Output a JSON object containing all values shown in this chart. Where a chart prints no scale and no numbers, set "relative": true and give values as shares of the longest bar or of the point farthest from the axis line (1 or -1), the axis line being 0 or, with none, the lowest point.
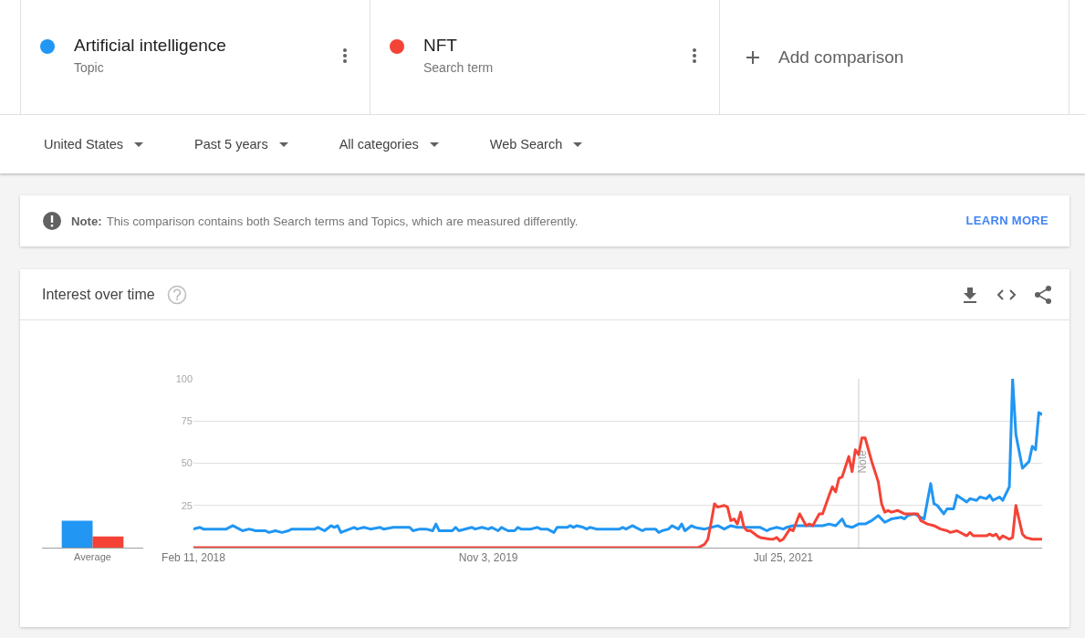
{
  "chart_data": [
    {
      "type": "bar",
      "categories": [
        "Average"
      ],
      "series": [
        {
          "color": "#2196f3",
          "values": [
            1
          ]
        },
        {
          "color": "#f44336",
          "values": [
            0.42
          ]
        }
      ],
      "relative": true
    },
    {
      "type": "line",
      "title": "Interest over time",
      "annotations": [
        "Topic",
        "Search term",
        "Add comparison",
        "United States",
        "Past 5 years",
        "All categories",
        "Web Search",
        "Note:",
        "This comparison contains both Search terms and Topics, which are measured differently.",
        "LEARN MORE"
      ],
      "series": [
        {
          "name": "Artificial intelligence",
          "color": "#2196f3",
          "x": [
            "2018-02-11",
            "2018-02-25",
            "2018-03-04",
            "2018-04-22",
            "2018-05-06",
            "2018-05-20",
            "2018-05-27",
            "2018-06-10",
            "2018-06-24",
            "2018-07-15",
            "2018-07-22",
            "2018-08-05",
            "2018-08-19",
            "2018-09-02",
            "2018-09-09",
            "2018-10-28",
            "2018-11-04",
            "2018-11-18",
            "2018-12-02",
            "2018-12-09",
            "2018-12-16",
            "2018-12-23",
            "2019-01-20",
            "2019-01-27",
            "2019-02-10",
            "2019-02-24",
            "2019-03-17",
            "2019-03-24",
            "2019-04-14",
            "2019-05-19",
            "2019-05-26",
            "2019-06-09",
            "2019-06-23",
            "2019-07-07",
            "2019-07-14",
            "2019-07-21",
            "2019-08-18",
            "2019-08-25",
            "2019-09-01",
            "2019-09-29",
            "2019-10-06",
            "2019-10-20",
            "2019-11-03",
            "2019-11-10",
            "2019-11-24",
            "2019-12-01",
            "2019-12-15",
            "2019-12-29",
            "2020-01-05",
            "2020-01-12",
            "2020-02-02",
            "2020-02-16",
            "2020-02-23",
            "2020-03-08",
            "2020-03-22",
            "2020-03-29",
            "2020-04-19",
            "2020-04-26",
            "2020-05-03",
            "2020-05-10",
            "2020-05-24",
            "2020-05-31",
            "2020-06-07",
            "2020-06-21",
            "2020-08-09",
            "2020-08-16",
            "2020-08-23",
            "2020-09-06",
            "2020-09-13",
            "2020-09-27",
            "2020-10-04",
            "2020-10-25",
            "2020-11-01",
            "2020-11-08",
            "2020-11-22",
            "2020-11-29",
            "2020-12-13",
            "2020-12-20",
            "2020-12-27",
            "2021-01-10",
            "2021-01-17",
            "2021-02-07",
            "2021-03-07",
            "2021-03-21",
            "2021-04-04",
            "2021-04-18",
            "2021-06-06",
            "2021-06-20",
            "2021-06-27",
            "2021-07-11",
            "2021-07-25",
            "2021-08-01",
            "2021-08-15",
            "2021-10-17",
            "2021-10-31",
            "2021-11-14",
            "2021-11-28",
            "2021-12-05",
            "2021-12-19",
            "2022-01-02",
            "2022-01-16",
            "2022-01-30",
            "2022-02-13",
            "2022-02-27",
            "2022-03-13",
            "2022-04-03",
            "2022-04-10",
            "2022-04-17",
            "2022-05-01",
            "2022-05-22",
            "2022-06-05",
            "2022-06-12",
            "2022-06-19",
            "2022-07-03",
            "2022-07-10",
            "2022-07-24",
            "2022-07-31",
            "2022-08-21",
            "2022-08-28",
            "2022-09-11",
            "2022-09-18",
            "2022-10-02",
            "2022-10-09",
            "2022-10-16",
            "2022-10-30",
            "2022-11-06",
            "2022-11-20",
            "2022-11-27",
            "2022-12-04",
            "2022-12-18",
            "2023-01-01",
            "2023-01-08",
            "2023-01-15",
            "2023-01-22",
            "2023-01-29"
          ],
          "values": [
            11,
            12,
            11,
            11,
            13,
            11,
            10,
            11,
            10,
            10,
            9,
            10,
            9,
            10,
            11,
            11,
            12,
            10,
            13,
            12,
            13,
            9,
            12,
            11,
            12,
            11,
            12,
            11,
            12,
            12,
            10,
            11,
            11,
            10,
            14,
            10,
            10,
            12,
            10,
            12,
            11,
            12,
            11,
            12,
            10,
            12,
            10,
            10,
            12,
            11,
            11,
            12,
            11,
            11,
            9,
            12,
            12,
            13,
            12,
            13,
            12,
            11,
            12,
            11,
            11,
            12,
            11,
            13,
            12,
            10,
            11,
            11,
            9,
            10,
            11,
            13,
            11,
            14,
            10,
            13,
            12,
            11,
            13,
            11,
            13,
            12,
            12,
            10,
            11,
            12,
            11,
            12,
            13,
            13,
            14,
            13,
            17,
            13,
            12,
            14,
            14,
            16,
            19,
            15,
            17,
            18,
            17,
            19,
            20,
            17,
            38,
            26,
            25,
            20,
            23,
            23,
            31,
            27,
            29,
            28,
            30,
            29,
            31,
            28,
            30,
            28,
            36,
            100,
            67,
            47,
            51,
            60,
            58,
            80,
            79
          ]
        },
        {
          "name": "NFT",
          "color": "#f44336",
          "x": [
            "2018-02-11",
            "2021-01-24",
            "2021-02-07",
            "2021-02-14",
            "2021-02-21",
            "2021-02-28",
            "2021-03-07",
            "2021-03-21",
            "2021-03-28",
            "2021-04-04",
            "2021-04-11",
            "2021-04-18",
            "2021-04-25",
            "2021-05-02",
            "2021-05-09",
            "2021-05-16",
            "2021-05-30",
            "2021-06-06",
            "2021-06-27",
            "2021-07-04",
            "2021-07-11",
            "2021-07-18",
            "2021-07-25",
            "2021-08-08",
            "2021-08-15",
            "2021-08-29",
            "2021-09-12",
            "2021-09-19",
            "2021-09-26",
            "2021-10-10",
            "2021-10-17",
            "2021-10-31",
            "2021-11-07",
            "2021-11-14",
            "2021-11-21",
            "2021-11-28",
            "2021-12-12",
            "2021-12-19",
            "2021-12-26",
            "2022-01-02",
            "2022-01-09",
            "2022-01-16",
            "2022-01-30",
            "2022-02-13",
            "2022-02-20",
            "2022-02-27",
            "2022-03-06",
            "2022-03-13",
            "2022-03-27",
            "2022-04-03",
            "2022-04-10",
            "2022-04-24",
            "2022-05-08",
            "2022-05-15",
            "2022-05-29",
            "2022-06-12",
            "2022-06-26",
            "2022-07-10",
            "2022-07-17",
            "2022-07-31",
            "2022-08-21",
            "2022-08-28",
            "2022-09-04",
            "2022-10-02",
            "2022-10-09",
            "2022-10-16",
            "2022-10-23",
            "2022-10-30",
            "2022-11-06",
            "2022-11-20",
            "2022-11-27",
            "2022-12-04",
            "2022-12-18",
            "2022-12-25",
            "2023-01-08",
            "2023-01-29"
          ],
          "values": [
            0,
            0,
            2,
            5,
            15,
            26,
            24,
            25,
            24,
            16,
            17,
            14,
            21,
            12,
            10,
            10,
            7,
            6,
            5,
            5,
            6,
            4,
            5,
            11,
            10,
            20,
            13,
            14,
            13,
            20,
            20,
            31,
            36,
            33,
            41,
            42,
            54,
            45,
            58,
            55,
            65,
            65,
            51,
            39,
            26,
            21,
            22,
            21,
            22,
            21,
            20,
            20,
            20,
            16,
            14,
            13,
            11,
            10,
            9,
            10,
            7,
            9,
            7,
            7,
            8,
            7,
            8,
            5,
            7,
            5,
            6,
            25,
            8,
            6,
            5,
            5
          ]
        }
      ],
      "xlim": [
        "2018-02-11",
        "2023-01-29"
      ],
      "xticks": [
        {
          "value": "2018-02-11",
          "label": "Feb 11, 2018"
        },
        {
          "value": "2019-11-03",
          "label": "Nov 3, 2019"
        },
        {
          "value": "2021-07-25",
          "label": "Jul 25, 2021"
        }
      ],
      "ylim": [
        0,
        100
      ],
      "yticks": [
        25,
        50,
        75,
        100
      ],
      "grid": "y",
      "legend": "top",
      "line_style": "solid",
      "ref_lines": [
        {
          "axis": "x",
          "value": "2022-01-02",
          "label": "Note",
          "color": "#cccccc"
        }
      ]
    }
  ]
}
